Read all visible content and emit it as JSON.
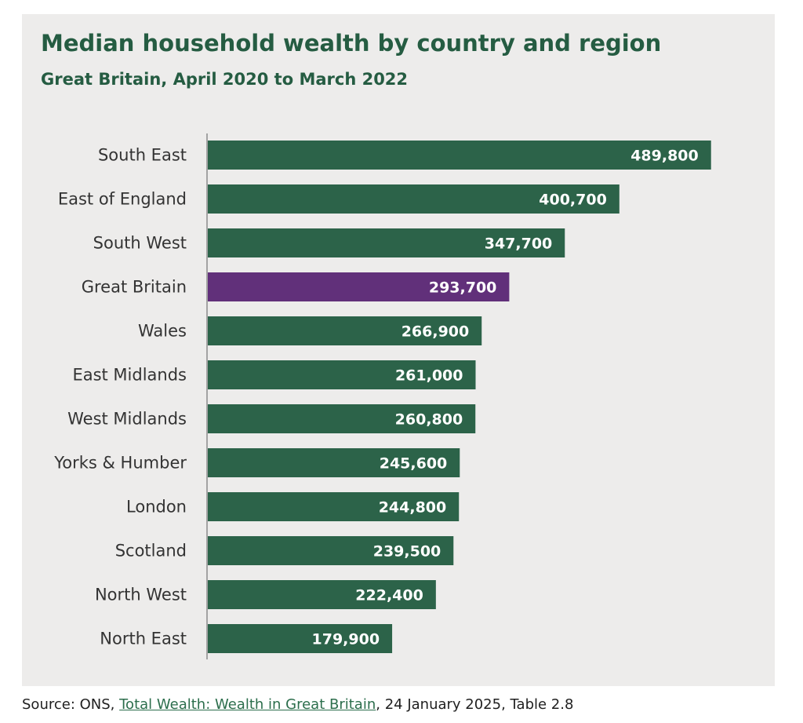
{
  "chart_data": {
    "type": "bar",
    "orientation": "horizontal",
    "title": "Median household wealth by country and region",
    "subtitle": "Great Britain, April 2020 to March 2022",
    "categories": [
      "South East",
      "East of England",
      "South West",
      "Great Britain",
      "Wales",
      "East Midlands",
      "West Midlands",
      "Yorks & Humber",
      "London",
      "Scotland",
      "North West",
      "North East"
    ],
    "values": [
      489800,
      400700,
      347700,
      293700,
      266900,
      261000,
      260800,
      245600,
      244800,
      239500,
      222400,
      179900
    ],
    "data_labels": [
      "489,800",
      "400,700",
      "347,700",
      "293,700",
      "266,900",
      "261,000",
      "260,800",
      "245,600",
      "244,800",
      "239,500",
      "222,400",
      "179,900"
    ],
    "highlight": "Great Britain",
    "xlim": [
      0,
      490000
    ],
    "colors": {
      "bar": "#2c6349",
      "highlight": "#61307a",
      "label": "#ffffff",
      "category": "#333333",
      "axis": "#a3a3a3"
    },
    "grid": false,
    "legend": "none"
  },
  "source": {
    "prefix": "Source:  ONS, ",
    "link_text": "Total Wealth: Wealth in Great Britain",
    "suffix": ", 24 January 2025, Table 2.8"
  }
}
